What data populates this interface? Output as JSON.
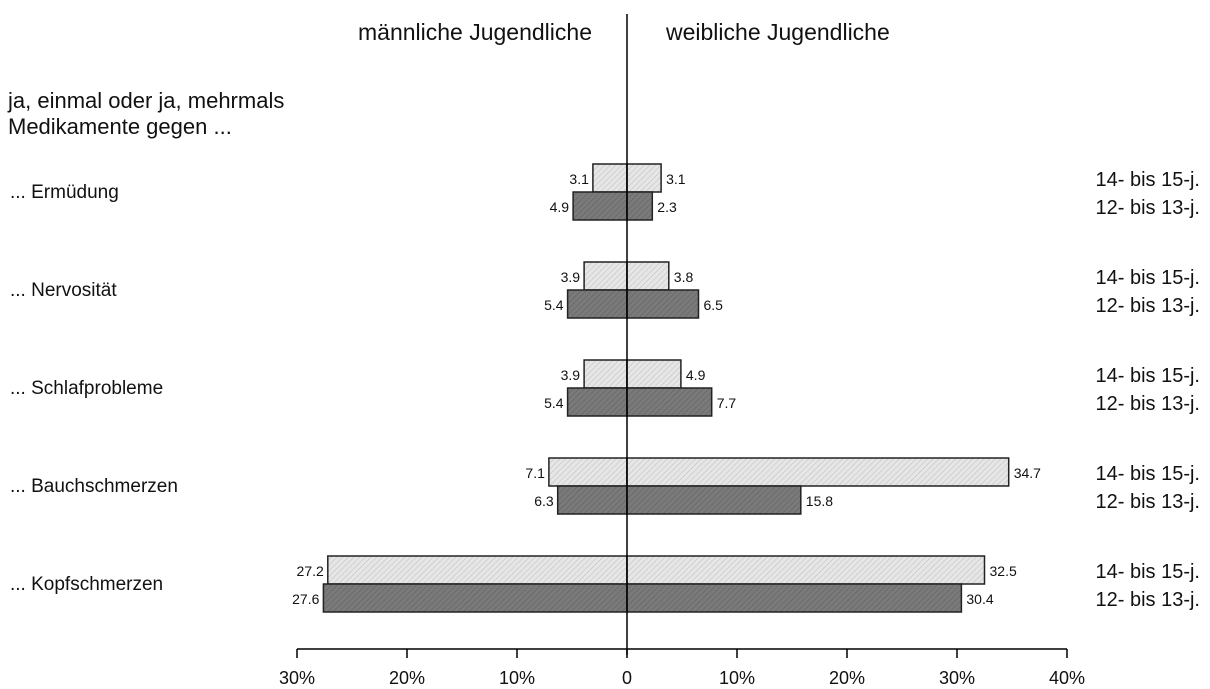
{
  "header": {
    "left_title": "männliche Jugendliche",
    "right_title": "weibliche Jugendliche"
  },
  "intro": {
    "line1": "ja, einmal oder ja, mehrmals",
    "line2": "Medikamente gegen ..."
  },
  "chart_data": {
    "type": "bar",
    "orientation": "horizontal-diverging",
    "categories": [
      "... Ermüdung",
      "... Nervosität",
      "... Schlafprobleme",
      "... Bauchschmerzen",
      "... Kopfschmerzen"
    ],
    "age_groups": [
      "14- bis 15-j.",
      "12- bis 13-j."
    ],
    "series": [
      {
        "name": "männliche Jugendliche",
        "group": "14- bis 15-j.",
        "side": "left",
        "values": [
          3.1,
          3.9,
          3.9,
          7.1,
          27.2
        ]
      },
      {
        "name": "männliche Jugendliche",
        "group": "12- bis 13-j.",
        "side": "left",
        "values": [
          4.9,
          5.4,
          5.4,
          6.3,
          27.6
        ]
      },
      {
        "name": "weibliche Jugendliche",
        "group": "14- bis 15-j.",
        "side": "right",
        "values": [
          3.1,
          3.8,
          4.9,
          34.7,
          32.5
        ]
      },
      {
        "name": "weibliche Jugendliche",
        "group": "12- bis 13-j.",
        "side": "right",
        "values": [
          2.3,
          6.5,
          7.7,
          15.8,
          30.4
        ]
      }
    ],
    "data_labels": {
      "left_top": [
        "3.1",
        "3.9",
        "3.9",
        "7.1",
        "27.2"
      ],
      "left_bottom": [
        "4.9",
        "5.4",
        "5.4",
        "6.3",
        "27.6"
      ],
      "right_top": [
        "3.1",
        "3.8",
        "4.9",
        "34.7",
        "32.5"
      ],
      "right_bottom": [
        "2.3",
        "6.5",
        "7.7",
        "15.8",
        "30.4"
      ]
    },
    "xlim": [
      -30,
      40
    ],
    "x_ticks": [
      -30,
      -20,
      -10,
      0,
      10,
      20,
      30,
      40
    ],
    "x_tick_labels": [
      "30%",
      "20%",
      "10%",
      "0",
      "10%",
      "20%",
      "30%",
      "40%"
    ],
    "colors": {
      "group_14_15": "#e4e4e4",
      "group_12_13": "#767676",
      "bar_edge": "#222222"
    },
    "grid": false,
    "legend": "none"
  }
}
